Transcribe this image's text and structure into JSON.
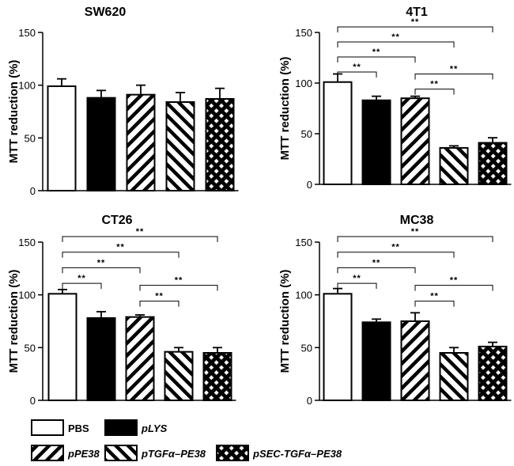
{
  "legend": [
    {
      "label": "PBS",
      "pattern": "white"
    },
    {
      "label": "pLYS",
      "pattern": "black"
    },
    {
      "label": "pPE38",
      "pattern": "diagR"
    },
    {
      "label": "pTGFα–PE38",
      "pattern": "diagL"
    },
    {
      "label": "pSEC-TGFα–PE38",
      "pattern": "cross"
    }
  ],
  "significance_label": "**",
  "chart_data": [
    {
      "type": "bar",
      "title": "SW620",
      "ylabel": "MTT reduction (%)",
      "ylim": [
        0,
        150
      ],
      "yticks": [
        0,
        50,
        100,
        150
      ],
      "categories": [
        "PBS",
        "pLYS",
        "pPE38",
        "pTGFα–PE38",
        "pSEC-TGFα–PE38"
      ],
      "values": [
        99,
        88,
        91,
        84,
        87
      ],
      "errors": [
        7,
        7,
        9,
        9,
        10
      ],
      "significance": []
    },
    {
      "type": "bar",
      "title": "4T1",
      "ylabel": "MTT reduction (%)",
      "ylim": [
        0,
        150
      ],
      "yticks": [
        0,
        50,
        100,
        150
      ],
      "categories": [
        "PBS",
        "pLYS",
        "pPE38",
        "pTGFα–PE38",
        "pSEC-TGFα–PE38"
      ],
      "values": [
        101,
        83,
        85,
        36,
        41
      ],
      "errors": [
        8,
        4,
        2,
        2,
        5
      ],
      "significance": [
        [
          0,
          4
        ],
        [
          0,
          3
        ],
        [
          0,
          2
        ],
        [
          0,
          1
        ],
        [
          2,
          4
        ],
        [
          2,
          3
        ]
      ]
    },
    {
      "type": "bar",
      "title": "CT26",
      "ylabel": "MTT reduction (%)",
      "ylim": [
        0,
        150
      ],
      "yticks": [
        0,
        50,
        100,
        150
      ],
      "categories": [
        "PBS",
        "pLYS",
        "pPE38",
        "pTGFα–PE38",
        "pSEC-TGFα–PE38"
      ],
      "values": [
        101,
        78,
        79,
        46,
        45
      ],
      "errors": [
        4,
        6,
        2,
        4,
        5
      ],
      "significance": [
        [
          0,
          4
        ],
        [
          0,
          3
        ],
        [
          0,
          2
        ],
        [
          0,
          1
        ],
        [
          2,
          4
        ],
        [
          2,
          3
        ]
      ]
    },
    {
      "type": "bar",
      "title": "MC38",
      "ylabel": "MTT reduction (%)",
      "ylim": [
        0,
        150
      ],
      "yticks": [
        0,
        50,
        100,
        150
      ],
      "categories": [
        "PBS",
        "pLYS",
        "pPE38",
        "pTGFα–PE38",
        "pSEC-TGFα–PE38"
      ],
      "values": [
        101,
        74,
        75,
        45,
        51
      ],
      "errors": [
        5,
        3,
        8,
        5,
        4
      ],
      "significance": [
        [
          0,
          4
        ],
        [
          0,
          3
        ],
        [
          0,
          2
        ],
        [
          0,
          1
        ],
        [
          2,
          4
        ],
        [
          2,
          3
        ]
      ]
    }
  ]
}
